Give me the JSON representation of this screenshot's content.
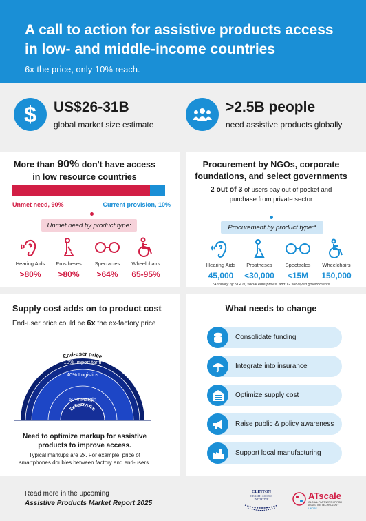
{
  "header": {
    "title": "A call to action for assistive products access in low- and middle-income countries",
    "subtitle": "6x the price, only 10% reach."
  },
  "stats": [
    {
      "icon": "dollar-icon",
      "value": "US$26-31B",
      "label": "global market size estimate"
    },
    {
      "icon": "people-icon",
      "value": ">2.5B people",
      "label": "need assistive products globally"
    }
  ],
  "access": {
    "title_pre": "More than ",
    "title_pct": "90%",
    "title_post": " don't have access",
    "title_line2": "in low resource countries",
    "unmet_label": "Unmet need, 90%",
    "current_label": "Current provision, 10%",
    "unmet_fraction": 0.9,
    "product_type_label": "Unmet need by product type:",
    "products": [
      {
        "icon": "hearing-aid-icon",
        "name": "Hearing Aids",
        "value": ">80%"
      },
      {
        "icon": "prosthesis-icon",
        "name": "Prostheses",
        "value": ">80%"
      },
      {
        "icon": "spectacles-icon",
        "name": "Spectacles",
        "value": ">64%"
      },
      {
        "icon": "wheelchair-icon",
        "name": "Wheelchairs",
        "value": "65-95%"
      }
    ],
    "colors": {
      "unmet": "#d21e45",
      "current": "#1a8fd6"
    }
  },
  "procurement": {
    "title_line1": "Procurement by NGOs, corporate",
    "title_line2": "foundations, and select governments",
    "sub_bold": "2 out of 3",
    "sub_rest": " of users pay out of pocket and",
    "sub_line2": "purchase from private sector",
    "product_type_label": "Procurement by product type:*",
    "products": [
      {
        "icon": "hearing-aid-icon",
        "name": "Hearing Aids",
        "value": "45,000"
      },
      {
        "icon": "prosthesis-icon",
        "name": "Prostheses",
        "value": "<30,000"
      },
      {
        "icon": "spectacles-icon",
        "name": "Spectacles",
        "value": "<15M"
      },
      {
        "icon": "wheelchair-icon",
        "name": "Wheelchairs",
        "value": "150,000"
      }
    ],
    "note": "*Annually by NGOs, social enterprises, and 12 surveyed governments"
  },
  "supply": {
    "title": "Supply cost adds on to product cost",
    "sub_pre": "End-user price could be ",
    "sub_bold": "6x",
    "sub_post": " the ex-factory price",
    "arc_labels": {
      "end_user": "End-user price",
      "import": "10% Import tariff",
      "logistics": "40% Logistics",
      "margin": "50% Margin",
      "ex_factory": "Ex-factory price"
    },
    "optimize_line1": "Need to optimize markup for assistive",
    "optimize_line2": "products to improve access.",
    "note_line1": "Typical markups are 2x. For example, price of",
    "note_line2": "smartphones doubles between factory and end-users."
  },
  "change": {
    "title": "What needs to change",
    "actions": [
      {
        "icon": "coins-icon",
        "label": "Consolidate funding"
      },
      {
        "icon": "umbrella-icon",
        "label": "Integrate into insurance"
      },
      {
        "icon": "warehouse-icon",
        "label": "Optimize supply cost"
      },
      {
        "icon": "megaphone-icon",
        "label": "Raise public & policy awareness"
      },
      {
        "icon": "factory-icon",
        "label": "Support local manufacturing"
      }
    ]
  },
  "footer": {
    "line1": "Read more in the upcoming",
    "line2": "Assistive Products Market Report 2025",
    "logo1": "CLINTON HEALTH ACCESS INITIATIVE",
    "logo2_name": "ATscale",
    "logo2_sub1": "GLOBAL PARTNERSHIP FOR",
    "logo2_sub2": "ASSISTIVE TECHNOLOGY",
    "logo2_sub3": "UNOPS"
  }
}
